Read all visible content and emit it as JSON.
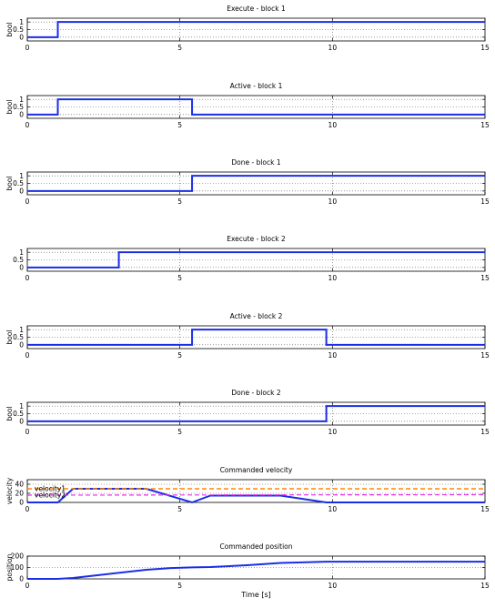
{
  "figure": {
    "xlabel": "Time [s]"
  },
  "colors": {
    "signal": "#1a2ee6",
    "velocity1": "#ff8800",
    "velocity2": "#e62ee6"
  },
  "chart_data": [
    {
      "type": "line",
      "title": "Execute - block 1",
      "ylabel": "bool",
      "xlim": [
        0,
        15
      ],
      "ylim": [
        -0.25,
        1.25
      ],
      "xticks": [
        0,
        5,
        10,
        15
      ],
      "yticks": [
        0,
        0.5,
        1
      ],
      "ytick_labels": [
        "0",
        "0.5",
        "1"
      ],
      "grid": true,
      "series": [
        {
          "x": [
            0,
            1,
            1,
            15
          ],
          "y": [
            0,
            0,
            1,
            1
          ]
        }
      ]
    },
    {
      "type": "line",
      "title": "Active - block 1",
      "ylabel": "bool",
      "xlim": [
        0,
        15
      ],
      "ylim": [
        -0.25,
        1.25
      ],
      "xticks": [
        0,
        5,
        10,
        15
      ],
      "yticks": [
        0,
        0.5,
        1
      ],
      "ytick_labels": [
        "0",
        "0.5",
        "1"
      ],
      "grid": true,
      "series": [
        {
          "x": [
            0,
            1,
            1,
            5.4,
            5.4,
            15
          ],
          "y": [
            0,
            0,
            1,
            1,
            0,
            0
          ]
        }
      ]
    },
    {
      "type": "line",
      "title": "Done - block 1",
      "ylabel": "bool",
      "xlim": [
        0,
        15
      ],
      "ylim": [
        -0.25,
        1.25
      ],
      "xticks": [
        0,
        5,
        10,
        15
      ],
      "yticks": [
        0,
        0.5,
        1
      ],
      "ytick_labels": [
        "0",
        "0.5",
        "1"
      ],
      "grid": true,
      "series": [
        {
          "x": [
            0,
            5.4,
            5.4,
            15
          ],
          "y": [
            0,
            0,
            1,
            1
          ]
        }
      ]
    },
    {
      "type": "line",
      "title": "Execute - block 2",
      "ylabel": "",
      "xlim": [
        0,
        15
      ],
      "ylim": [
        -0.25,
        1.25
      ],
      "xticks": [
        0,
        5,
        10,
        15
      ],
      "yticks": [
        0,
        0.5,
        1
      ],
      "ytick_labels": [
        "0",
        "0.5",
        "1"
      ],
      "grid": true,
      "series": [
        {
          "x": [
            0,
            3,
            3,
            15
          ],
          "y": [
            0,
            0,
            1,
            1
          ]
        }
      ]
    },
    {
      "type": "line",
      "title": "Active - block 2",
      "ylabel": "bool",
      "xlim": [
        0,
        15
      ],
      "ylim": [
        -0.25,
        1.25
      ],
      "xticks": [
        0,
        5,
        10,
        15
      ],
      "yticks": [
        0,
        0.5,
        1
      ],
      "ytick_labels": [
        "0",
        "0.5",
        "1"
      ],
      "grid": true,
      "series": [
        {
          "x": [
            0,
            5.4,
            5.4,
            9.8,
            9.8,
            15
          ],
          "y": [
            0,
            0,
            1,
            1,
            0,
            0
          ]
        }
      ]
    },
    {
      "type": "line",
      "title": "Done - block 2",
      "ylabel": "bool",
      "xlim": [
        0,
        15
      ],
      "ylim": [
        -0.25,
        1.25
      ],
      "xticks": [
        0,
        5,
        10,
        15
      ],
      "yticks": [
        0,
        0.5,
        1
      ],
      "ytick_labels": [
        "0",
        "0.5",
        "1"
      ],
      "grid": true,
      "series": [
        {
          "x": [
            0,
            9.8,
            9.8,
            15
          ],
          "y": [
            0,
            0,
            1,
            1
          ]
        }
      ]
    },
    {
      "type": "line",
      "title": "Commanded velocity",
      "ylabel": "velocity",
      "xlim": [
        0,
        15
      ],
      "ylim": [
        0,
        50
      ],
      "xticks": [
        0,
        5,
        10,
        15
      ],
      "yticks": [
        0,
        20,
        40
      ],
      "ytick_labels": [
        "0",
        "20",
        "40"
      ],
      "grid": true,
      "series": [
        {
          "x": [
            0,
            1,
            1.5,
            3.9,
            5.4,
            6,
            8.3,
            9.8,
            15
          ],
          "y": [
            0,
            0,
            30,
            30,
            0,
            15,
            15,
            0,
            0
          ]
        },
        {
          "name": "velocity1",
          "x": [
            0,
            15
          ],
          "y": [
            30,
            30
          ],
          "style": "dashed"
        },
        {
          "name": "velocity2",
          "x": [
            0,
            15
          ],
          "y": [
            16,
            17
          ],
          "style": "dashed"
        }
      ]
    },
    {
      "type": "line",
      "title": "Commanded position",
      "ylabel": "position",
      "xlabel": "Time [s]",
      "xlim": [
        0,
        15
      ],
      "ylim": [
        0,
        200
      ],
      "xticks": [
        0,
        5,
        10,
        15
      ],
      "yticks": [
        0,
        100,
        200
      ],
      "ytick_labels": [
        "0",
        "100",
        "200"
      ],
      "grid": true,
      "series": [
        {
          "x": [
            0,
            1,
            1.5,
            2.5,
            3.9,
            4.7,
            5.4,
            6,
            7.2,
            8.3,
            9.8,
            15
          ],
          "y": [
            0,
            0,
            8,
            38,
            80,
            95,
            101,
            104,
            120,
            140,
            151,
            151
          ]
        }
      ]
    }
  ]
}
